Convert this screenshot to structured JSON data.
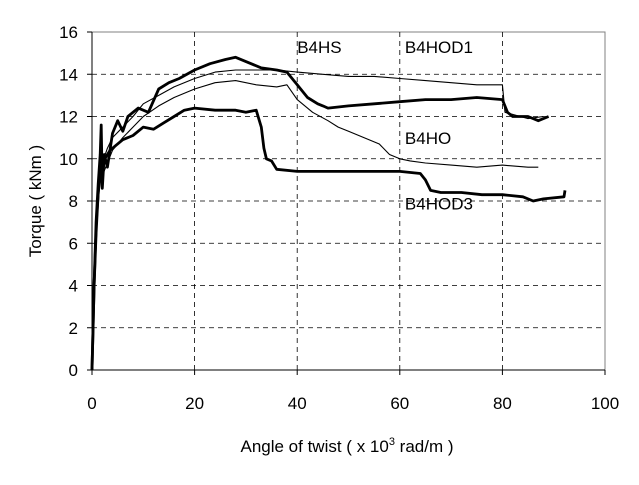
{
  "chart_data": {
    "type": "line",
    "xlabel": "Angle of twist ( x 10",
    "xlabel_sup": "3",
    "xlabel_tail": " rad/m )",
    "ylabel": "Torque ( kNm )",
    "xlim": [
      0,
      100
    ],
    "ylim": [
      0,
      16
    ],
    "x_ticks": [
      "0",
      "20",
      "40",
      "60",
      "80",
      "100"
    ],
    "y_ticks": [
      "0",
      "2",
      "4",
      "6",
      "8",
      "10",
      "12",
      "14",
      "16"
    ],
    "grid": "horizontal and vertical, dashed",
    "line_color": "#000000",
    "annotations": [
      {
        "text": "B4HS",
        "x": 40,
        "y": 15.0
      },
      {
        "text": "B4HOD1",
        "x": 61,
        "y": 15.0
      },
      {
        "text": "B4HO",
        "x": 61,
        "y": 10.7
      },
      {
        "text": "B4HOD3",
        "x": 61,
        "y": 7.6
      }
    ],
    "series": [
      {
        "weight": "bold",
        "points": [
          [
            0,
            0
          ],
          [
            0.4,
            4
          ],
          [
            0.8,
            7
          ],
          [
            1.2,
            8.8
          ],
          [
            1.6,
            10.2
          ],
          [
            1.8,
            11.6
          ],
          [
            2.0,
            8.6
          ],
          [
            2.4,
            10.2
          ],
          [
            3,
            9.6
          ],
          [
            4,
            11.2
          ],
          [
            5,
            11.8
          ],
          [
            6,
            11.3
          ],
          [
            7,
            12
          ],
          [
            9,
            12.4
          ],
          [
            11,
            12.2
          ],
          [
            13,
            13.3
          ],
          [
            15,
            13.6
          ],
          [
            17,
            13.8
          ],
          [
            20,
            14.2
          ],
          [
            23,
            14.5
          ],
          [
            26,
            14.7
          ],
          [
            28,
            14.8
          ],
          [
            30,
            14.6
          ],
          [
            33,
            14.3
          ],
          [
            36,
            14.2
          ],
          [
            38,
            14.1
          ],
          [
            40,
            13.5
          ],
          [
            42,
            12.9
          ],
          [
            44,
            12.6
          ],
          [
            45,
            12.5
          ],
          [
            46,
            12.4
          ],
          [
            50,
            12.5
          ],
          [
            55,
            12.6
          ],
          [
            60,
            12.7
          ],
          [
            65,
            12.8
          ],
          [
            70,
            12.8
          ],
          [
            75,
            12.9
          ],
          [
            80,
            12.8
          ],
          [
            81,
            12.2
          ],
          [
            82,
            12.0
          ],
          [
            85,
            12.0
          ],
          [
            87,
            11.8
          ],
          [
            89,
            12.0
          ]
        ]
      },
      {
        "weight": "thin",
        "points": [
          [
            0,
            0
          ],
          [
            0.4,
            4
          ],
          [
            0.8,
            7
          ],
          [
            1.3,
            9
          ],
          [
            2,
            9.8
          ],
          [
            3,
            10.5
          ],
          [
            4,
            11
          ],
          [
            6,
            11.5
          ],
          [
            8,
            12
          ],
          [
            10,
            12.6
          ],
          [
            13,
            13.0
          ],
          [
            16,
            13.4
          ],
          [
            20,
            13.8
          ],
          [
            24,
            14.1
          ],
          [
            28,
            14.2
          ],
          [
            32,
            14.2
          ],
          [
            36,
            14.2
          ],
          [
            40,
            14.1
          ],
          [
            45,
            14.0
          ],
          [
            50,
            13.9
          ],
          [
            55,
            13.9
          ],
          [
            60,
            13.8
          ],
          [
            65,
            13.7
          ],
          [
            70,
            13.6
          ],
          [
            75,
            13.5
          ],
          [
            80,
            13.5
          ],
          [
            80.5,
            12.2
          ],
          [
            82,
            12.1
          ],
          [
            85,
            11.9
          ],
          [
            88,
            12.0
          ]
        ]
      },
      {
        "weight": "thin",
        "points": [
          [
            0,
            0
          ],
          [
            0.5,
            4
          ],
          [
            1,
            7
          ],
          [
            1.5,
            8.8
          ],
          [
            2,
            9.2
          ],
          [
            3,
            9.8
          ],
          [
            4,
            10.4
          ],
          [
            6,
            11
          ],
          [
            8,
            11.5
          ],
          [
            10,
            12
          ],
          [
            13,
            12.5
          ],
          [
            16,
            12.9
          ],
          [
            20,
            13.3
          ],
          [
            24,
            13.6
          ],
          [
            28,
            13.7
          ],
          [
            32,
            13.5
          ],
          [
            36,
            13.4
          ],
          [
            38,
            13.5
          ],
          [
            40,
            12.8
          ],
          [
            43,
            12.2
          ],
          [
            46,
            11.8
          ],
          [
            48,
            11.5
          ],
          [
            50,
            11.3
          ],
          [
            53,
            11.0
          ],
          [
            56,
            10.7
          ],
          [
            58,
            10.2
          ],
          [
            60,
            10.0
          ],
          [
            62,
            9.9
          ],
          [
            65,
            9.8
          ],
          [
            70,
            9.7
          ],
          [
            75,
            9.6
          ],
          [
            80,
            9.7
          ],
          [
            85,
            9.6
          ],
          [
            87,
            9.6
          ]
        ]
      },
      {
        "weight": "bold",
        "points": [
          [
            0,
            0
          ],
          [
            0.4,
            4
          ],
          [
            0.8,
            6.5
          ],
          [
            1.2,
            8.4
          ],
          [
            1.8,
            9.5
          ],
          [
            2.5,
            10
          ],
          [
            3.5,
            10.4
          ],
          [
            4.5,
            10.6
          ],
          [
            6,
            10.9
          ],
          [
            8,
            11.1
          ],
          [
            10,
            11.5
          ],
          [
            12,
            11.4
          ],
          [
            14,
            11.7
          ],
          [
            16,
            12.0
          ],
          [
            18,
            12.3
          ],
          [
            20,
            12.4
          ],
          [
            24,
            12.3
          ],
          [
            28,
            12.3
          ],
          [
            30,
            12.2
          ],
          [
            32,
            12.3
          ],
          [
            33,
            11.5
          ],
          [
            33.5,
            10.5
          ],
          [
            34,
            10.0
          ],
          [
            35,
            9.9
          ],
          [
            36,
            9.5
          ],
          [
            40,
            9.4
          ],
          [
            45,
            9.4
          ],
          [
            50,
            9.4
          ],
          [
            55,
            9.4
          ],
          [
            60,
            9.4
          ],
          [
            64,
            9.3
          ],
          [
            65,
            9.0
          ],
          [
            66,
            8.5
          ],
          [
            68,
            8.4
          ],
          [
            72,
            8.4
          ],
          [
            76,
            8.3
          ],
          [
            80,
            8.3
          ],
          [
            84,
            8.2
          ],
          [
            86,
            8.0
          ],
          [
            88,
            8.1
          ],
          [
            92,
            8.2
          ],
          [
            92.2,
            8.5
          ]
        ]
      }
    ]
  }
}
